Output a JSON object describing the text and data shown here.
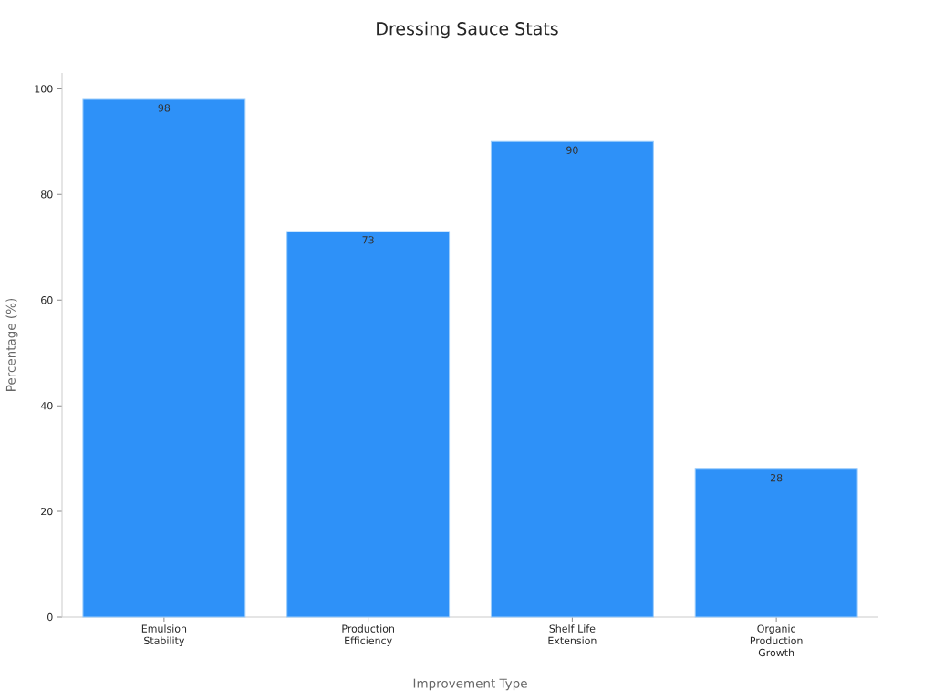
{
  "chart_data": {
    "type": "bar",
    "title": "Dressing Sauce Stats",
    "xlabel": "Improvement Type",
    "ylabel": "Percentage (%)",
    "categories": [
      "Emulsion Stability",
      "Production Efficiency",
      "Shelf Life Extension",
      "Organic Production Growth"
    ],
    "values": [
      98,
      73,
      90,
      28
    ],
    "color": "#2e91f8",
    "ylim": [
      0,
      103
    ],
    "yticks": [
      0,
      20,
      40,
      60,
      80,
      100
    ],
    "data_labels": true
  }
}
